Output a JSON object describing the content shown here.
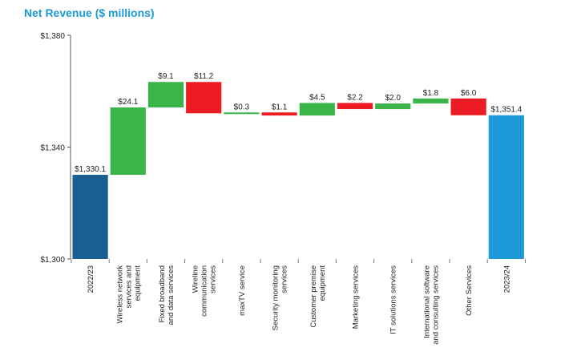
{
  "chart_data": {
    "type": "bar",
    "subtype": "waterfall",
    "title": "Net Revenue ($ millions)",
    "ylim": [
      1300,
      1380
    ],
    "yticks": [
      1300,
      1340,
      1380
    ],
    "ytick_labels": [
      "$1,300",
      "$1,340",
      "$1,380"
    ],
    "grid": false,
    "colors": {
      "total_start": "#1a5f93",
      "total_end": "#1f9ad8",
      "increase": "#3ab54a",
      "decrease": "#ed1c24"
    },
    "bars": [
      {
        "category": [
          "2022/23"
        ],
        "kind": "total",
        "color_key": "total_start",
        "start": 1300,
        "end": 1330.1,
        "label": "$1,330.1"
      },
      {
        "category": [
          "Wireless network",
          "services and",
          "equipment"
        ],
        "kind": "increase",
        "color_key": "increase",
        "start": 1330.1,
        "end": 1354.2,
        "label": "$24.1"
      },
      {
        "category": [
          "Fixed broadband",
          "and data services"
        ],
        "kind": "increase",
        "color_key": "increase",
        "start": 1354.2,
        "end": 1363.3,
        "label": "$9.1"
      },
      {
        "category": [
          "Wireline",
          "communication",
          "services"
        ],
        "kind": "decrease",
        "color_key": "decrease",
        "start": 1363.3,
        "end": 1352.1,
        "label": "$11.2"
      },
      {
        "category": [
          "maxTV service"
        ],
        "kind": "increase",
        "color_key": "increase",
        "start": 1352.1,
        "end": 1352.4,
        "label": "$0.3"
      },
      {
        "category": [
          "Security monitoring",
          "services"
        ],
        "kind": "decrease",
        "color_key": "decrease",
        "start": 1352.4,
        "end": 1351.3,
        "label": "$1.1"
      },
      {
        "category": [
          "Customer premise",
          "equipment"
        ],
        "kind": "increase",
        "color_key": "increase",
        "start": 1351.3,
        "end": 1355.8,
        "label": "$4.5"
      },
      {
        "category": [
          "Marketing services"
        ],
        "kind": "decrease",
        "color_key": "decrease",
        "start": 1355.8,
        "end": 1353.6,
        "label": "$2.2"
      },
      {
        "category": [
          "IT solutions services"
        ],
        "kind": "increase",
        "color_key": "increase",
        "start": 1353.6,
        "end": 1355.6,
        "label": "$2.0"
      },
      {
        "category": [
          "International software",
          "and consulting services"
        ],
        "kind": "increase",
        "color_key": "increase",
        "start": 1355.6,
        "end": 1357.4,
        "label": "$1.8"
      },
      {
        "category": [
          "Other Services"
        ],
        "kind": "decrease",
        "color_key": "decrease",
        "start": 1357.4,
        "end": 1351.4,
        "label": "$6.0"
      },
      {
        "category": [
          "2023/24"
        ],
        "kind": "total",
        "color_key": "total_end",
        "start": 1300,
        "end": 1351.4,
        "label": "$1,351.4"
      }
    ]
  }
}
